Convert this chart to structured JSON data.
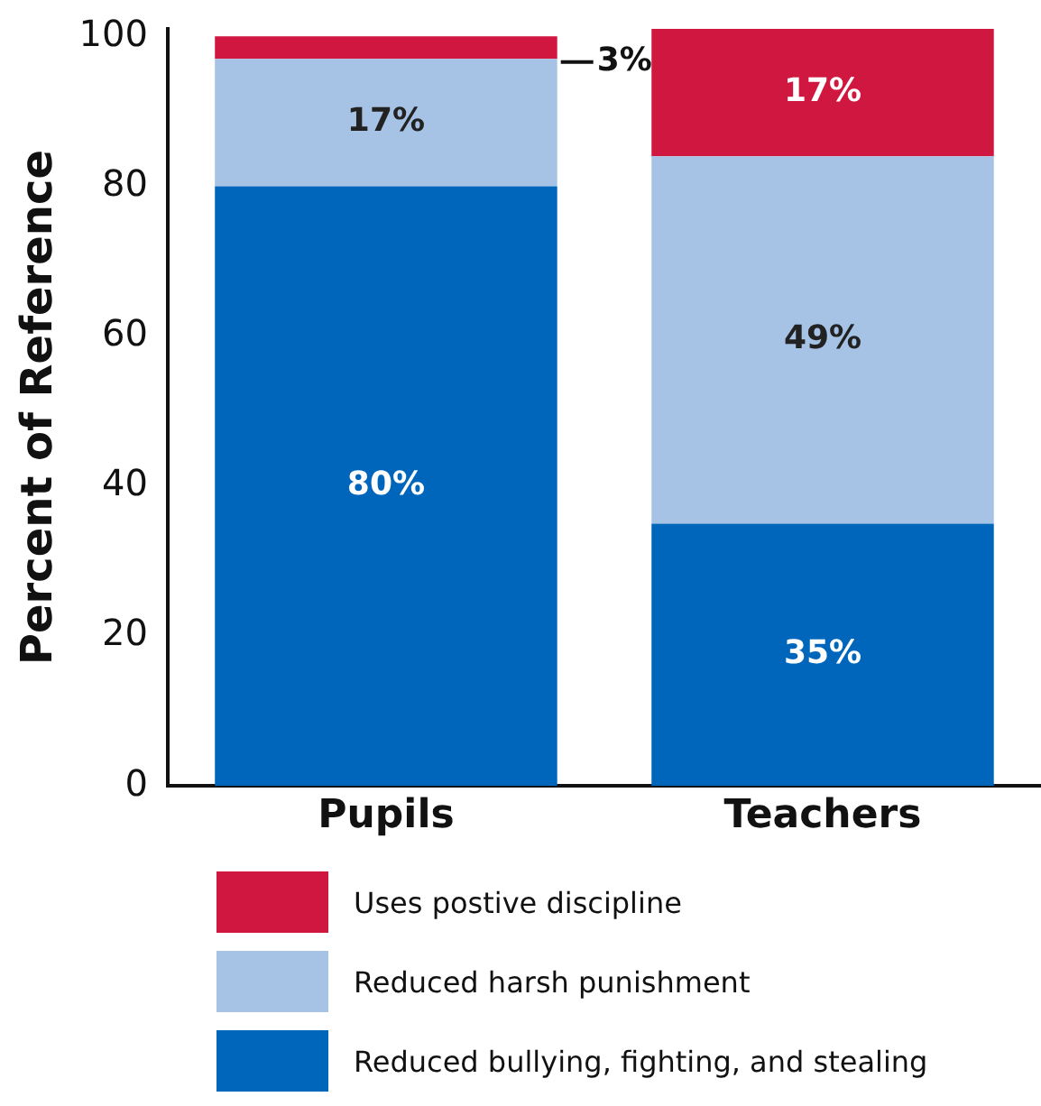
{
  "chart_data": {
    "type": "bar",
    "stacked": true,
    "ylabel": "Percent of Reference",
    "categories": [
      "Pupils",
      "Teachers"
    ],
    "series": [
      {
        "name": "Reduced bullying, fighting, and stealing",
        "color": "#0066bb",
        "values": [
          80,
          35
        ],
        "value_labels": [
          "80%",
          "35%"
        ]
      },
      {
        "name": "Reduced harsh punishment",
        "color": "#a6c3e6",
        "values": [
          17,
          49
        ],
        "value_labels": [
          "17%",
          "49%"
        ]
      },
      {
        "name": "Uses postive discipline",
        "color": "#d0173f",
        "values": [
          3,
          17
        ],
        "value_labels": [
          "3%",
          "17%"
        ]
      }
    ],
    "ylim": [
      0,
      101
    ],
    "yticks": [
      0,
      20,
      40,
      60,
      80,
      100
    ],
    "grid": false,
    "legend": "bottom"
  }
}
